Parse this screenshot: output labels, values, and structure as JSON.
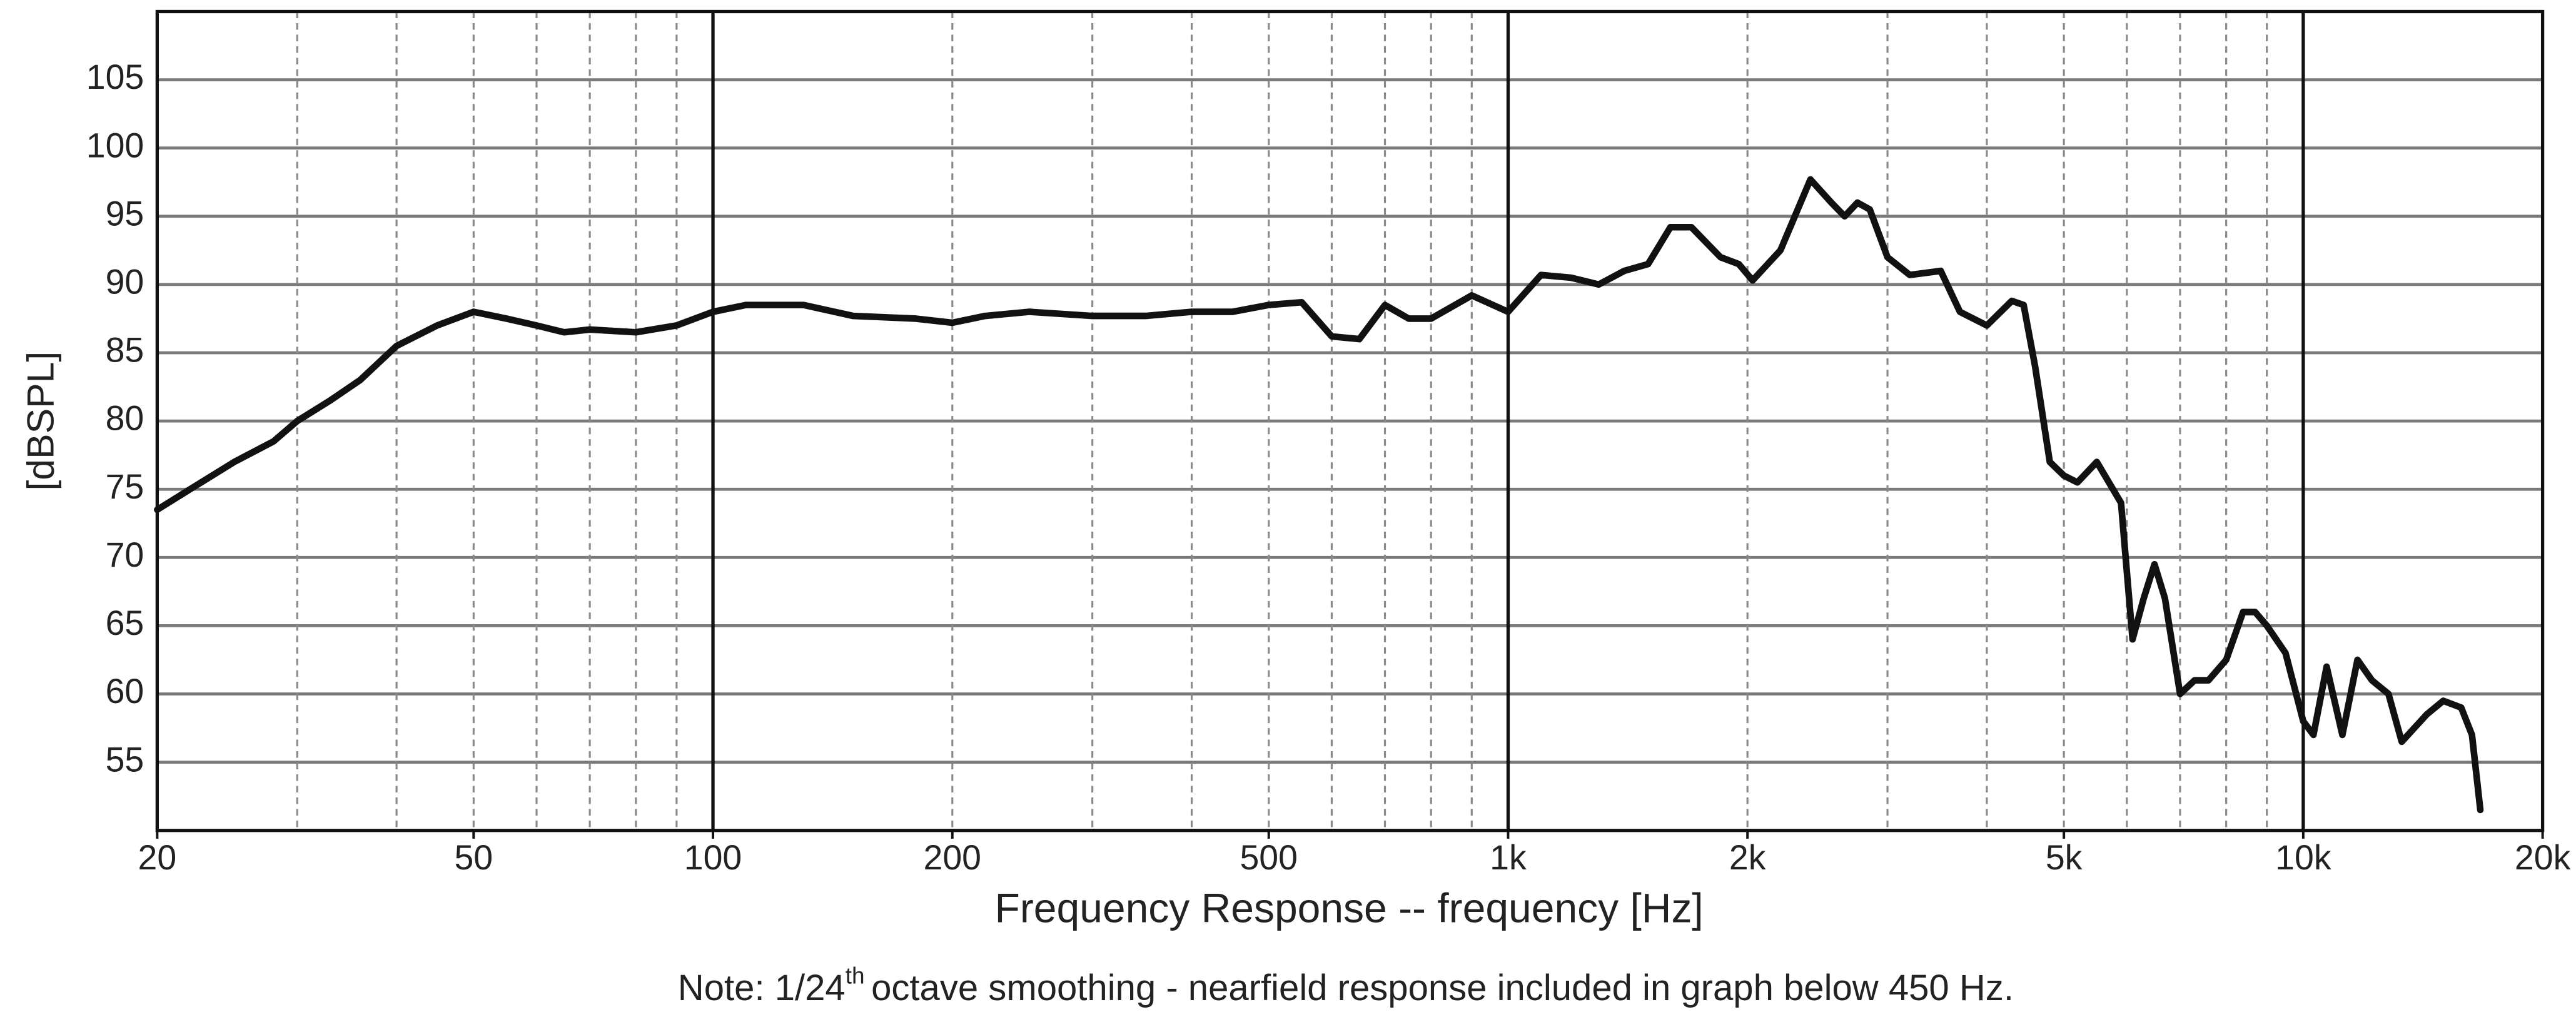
{
  "chart_data": {
    "type": "line",
    "y_label": "[dBSPL]",
    "x_label": "Frequency Response -- frequency [Hz]",
    "note_prefix": "Note: 1/24",
    "note_sup": "th",
    "note_suffix": "octave smoothing - nearfield response included in graph below 450 Hz.",
    "x_scale": "log",
    "xlim": [
      20,
      20000
    ],
    "ylim": [
      50,
      110
    ],
    "xticks": [
      20,
      50,
      100,
      200,
      500,
      {
        "value": 1000,
        "label": "1k"
      },
      {
        "value": 2000,
        "label": "2k"
      },
      {
        "value": 5000,
        "label": "5k"
      },
      {
        "value": 10000,
        "label": "10k"
      },
      {
        "value": 20000,
        "label": "20k"
      }
    ],
    "yticks": [
      55,
      60,
      65,
      70,
      75,
      80,
      85,
      90,
      95,
      100,
      105
    ],
    "x_major_grid": [
      100,
      1000,
      10000
    ],
    "x_minor_grid": [
      30,
      40,
      50,
      60,
      70,
      80,
      90,
      200,
      300,
      400,
      500,
      600,
      700,
      800,
      900,
      2000,
      3000,
      4000,
      5000,
      6000,
      7000,
      8000,
      9000
    ],
    "grid": true,
    "color": "#111111",
    "x": [
      20,
      22,
      25,
      28,
      30,
      33,
      36,
      40,
      45,
      50,
      55,
      60,
      65,
      70,
      80,
      90,
      100,
      110,
      130,
      150,
      180,
      200,
      220,
      250,
      300,
      350,
      400,
      450,
      500,
      550,
      600,
      650,
      700,
      750,
      800,
      900,
      1000,
      1100,
      1200,
      1300,
      1400,
      1500,
      1600,
      1700,
      1850,
      1950,
      2030,
      2200,
      2400,
      2550,
      2650,
      2750,
      2850,
      3000,
      3200,
      3500,
      3700,
      4000,
      4300,
      4450,
      4600,
      4800,
      5000,
      5200,
      5500,
      5900,
      6100,
      6300,
      6500,
      6700,
      7000,
      7300,
      7600,
      8000,
      8400,
      8700,
      9000,
      9500,
      10000,
      10300,
      10700,
      11200,
      11700,
      12200,
      12800,
      13300,
      14300,
      15000,
      15800,
      16300,
      16700
    ],
    "values": [
      73.5,
      75,
      77,
      78.5,
      80,
      81.5,
      83,
      85.5,
      87,
      88,
      87.5,
      87,
      86.5,
      86.7,
      86.5,
      87,
      88,
      88.5,
      88.5,
      87.7,
      87.5,
      87.2,
      87.7,
      88,
      87.7,
      87.7,
      88,
      88,
      88.5,
      88.7,
      86.2,
      86,
      88.5,
      87.5,
      87.5,
      89.2,
      88,
      90.7,
      90.5,
      90,
      91,
      91.5,
      94.2,
      94.2,
      92,
      91.5,
      90.3,
      92.5,
      97.7,
      96,
      95,
      96,
      95.5,
      92,
      90.7,
      91,
      88,
      87,
      88.8,
      88.5,
      84,
      77,
      76,
      75.5,
      77,
      74,
      64,
      67,
      69.5,
      67,
      60,
      61,
      61,
      62.5,
      66,
      66,
      65,
      63,
      58,
      57,
      62,
      57,
      62.5,
      61,
      60,
      56.5,
      58.5,
      59.5,
      59,
      57,
      51.5
    ]
  }
}
